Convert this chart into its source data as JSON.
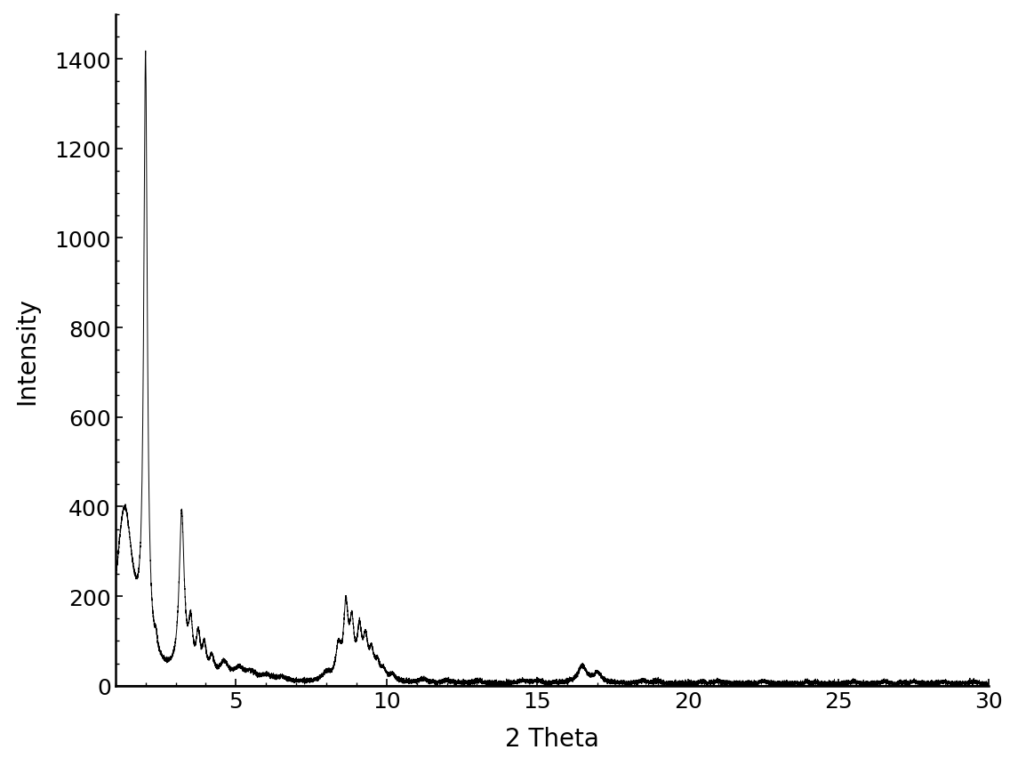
{
  "xlabel": "2 Theta",
  "ylabel": "Intensity",
  "xlim": [
    1,
    30
  ],
  "ylim": [
    0,
    1500
  ],
  "xticks": [
    5,
    10,
    15,
    20,
    25,
    30
  ],
  "yticks": [
    0,
    200,
    400,
    600,
    800,
    1000,
    1200,
    1400
  ],
  "line_color": "#000000",
  "line_width": 0.7,
  "background_color": "#ffffff",
  "xlabel_fontsize": 20,
  "ylabel_fontsize": 20,
  "tick_fontsize": 18,
  "figsize": [
    11.45,
    8.62
  ],
  "dpi": 100
}
